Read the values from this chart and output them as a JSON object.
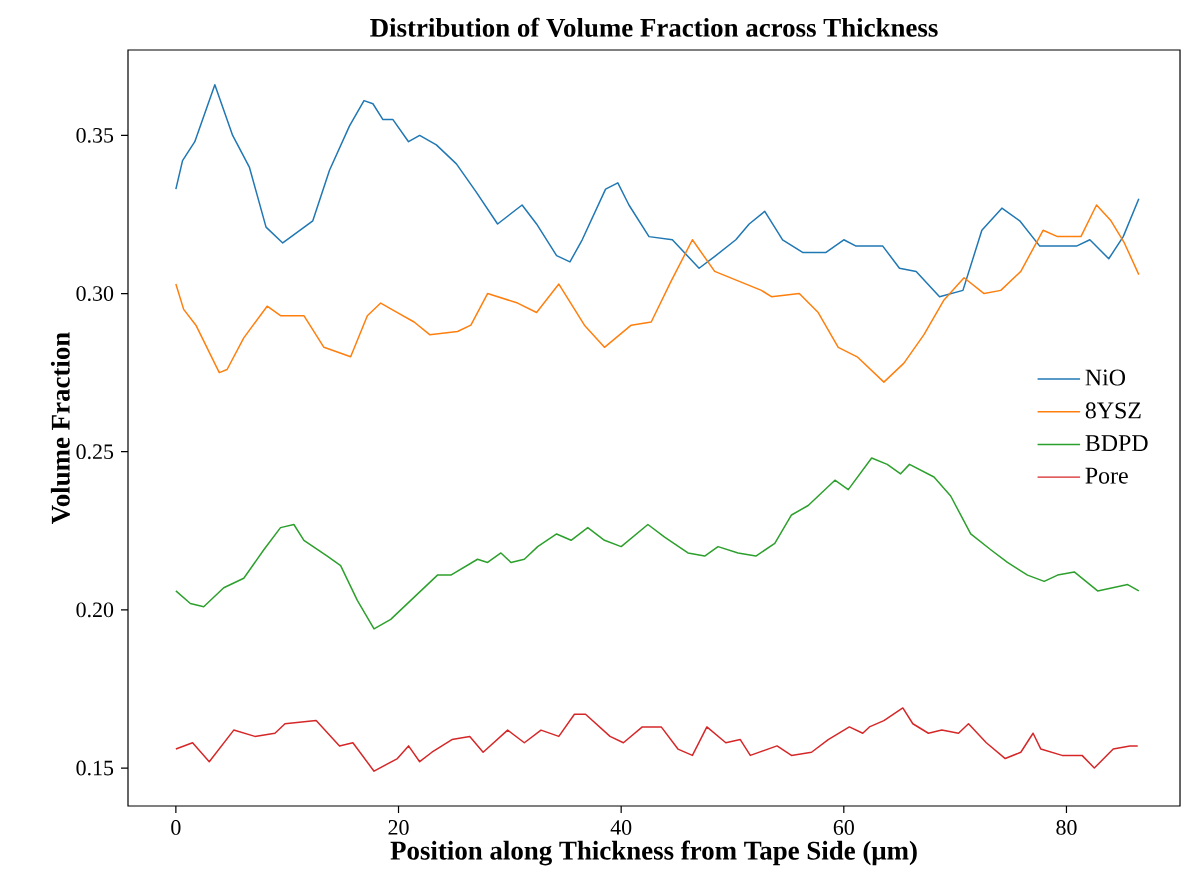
{
  "chart_data": {
    "type": "line",
    "title": "Distribution of Volume Fraction across Thickness",
    "xlabel": "Position along Thickness from Tape Side (μm)",
    "ylabel": "Volume Fraction",
    "xlim": [
      -4.3,
      90.2
    ],
    "ylim": [
      0.138,
      0.377
    ],
    "xticks": [
      0,
      20,
      40,
      60,
      80
    ],
    "yticks": [
      0.15,
      {
        "value": 0.2,
        "label": "0.20"
      },
      0.25,
      {
        "value": 0.3,
        "label": "0.30"
      },
      0.35
    ],
    "grid": false,
    "legend": "right",
    "series": [
      {
        "name": "NiO",
        "color": "#1f77b4",
        "x": [
          0,
          0.6,
          1.7,
          3.5,
          5.1,
          6.6,
          8.1,
          9.6,
          12.3,
          13.8,
          15.6,
          16.9,
          17.7,
          18.6,
          19.5,
          20.9,
          21.9,
          23.4,
          25.2,
          27.0,
          28.9,
          31.1,
          32.4,
          34.2,
          35.4,
          36.5,
          38.6,
          39.7,
          40.7,
          42.5,
          44.6,
          47.0,
          48.5,
          50.3,
          51.5,
          52.9,
          54.5,
          56.3,
          58.4,
          60.0,
          61.1,
          63.5,
          65.0,
          66.5,
          68.6,
          70.7,
          72.4,
          74.2,
          75.8,
          77.6,
          79.0,
          80.9,
          82.1,
          83.8,
          85.1,
          86.5
        ],
        "values": [
          0.333,
          0.342,
          0.348,
          0.366,
          0.35,
          0.34,
          0.321,
          0.316,
          0.323,
          0.339,
          0.353,
          0.361,
          0.36,
          0.355,
          0.355,
          0.348,
          0.35,
          0.347,
          0.341,
          0.332,
          0.322,
          0.328,
          0.322,
          0.312,
          0.31,
          0.317,
          0.333,
          0.335,
          0.328,
          0.318,
          0.317,
          0.308,
          0.312,
          0.317,
          0.322,
          0.326,
          0.317,
          0.313,
          0.313,
          0.317,
          0.315,
          0.315,
          0.308,
          0.307,
          0.299,
          0.301,
          0.32,
          0.327,
          0.323,
          0.315,
          0.315,
          0.315,
          0.317,
          0.311,
          0.318,
          0.33
        ]
      },
      {
        "name": "8YSZ",
        "color": "#ff7f0e",
        "x": [
          0,
          0.7,
          1.8,
          3.9,
          4.6,
          6.1,
          8.2,
          9.4,
          11.5,
          13.3,
          15.7,
          17.2,
          18.4,
          19.9,
          21.4,
          22.8,
          25.3,
          26.5,
          28.0,
          30.7,
          32.4,
          34.4,
          36.7,
          38.5,
          40.9,
          42.7,
          44.5,
          46.4,
          48.4,
          50.5,
          52.6,
          53.5,
          56.0,
          57.7,
          59.5,
          61.2,
          63.6,
          65.4,
          67.2,
          69.0,
          70.8,
          72.6,
          74.1,
          75.9,
          77.9,
          79.2,
          81.3,
          82.7,
          84.0,
          85.2,
          86.5
        ],
        "values": [
          0.303,
          0.295,
          0.29,
          0.275,
          0.276,
          0.286,
          0.296,
          0.293,
          0.293,
          0.283,
          0.28,
          0.293,
          0.297,
          0.294,
          0.291,
          0.287,
          0.288,
          0.29,
          0.3,
          0.297,
          0.294,
          0.303,
          0.29,
          0.283,
          0.29,
          0.291,
          0.304,
          0.317,
          0.307,
          0.304,
          0.301,
          0.299,
          0.3,
          0.294,
          0.283,
          0.28,
          0.272,
          0.278,
          0.287,
          0.298,
          0.305,
          0.3,
          0.301,
          0.307,
          0.32,
          0.318,
          0.318,
          0.328,
          0.323,
          0.316,
          0.306
        ]
      },
      {
        "name": "BDPD",
        "color": "#2ca02c",
        "x": [
          0,
          1.3,
          2.5,
          4.3,
          6.1,
          7.9,
          9.4,
          10.6,
          11.5,
          13.6,
          14.8,
          16.3,
          17.8,
          19.3,
          21.1,
          23.5,
          24.7,
          27.1,
          28.0,
          29.2,
          30.1,
          31.3,
          32.5,
          34.2,
          35.5,
          37.0,
          38.5,
          40.0,
          42.4,
          43.9,
          46.0,
          47.5,
          48.7,
          50.5,
          52.1,
          53.8,
          55.3,
          56.8,
          59.2,
          60.4,
          62.5,
          63.9,
          65.1,
          65.9,
          68.1,
          69.6,
          71.4,
          73.2,
          74.7,
          76.5,
          78.0,
          79.2,
          80.7,
          82.8,
          85.5,
          86.5
        ],
        "values": [
          0.206,
          0.202,
          0.201,
          0.207,
          0.21,
          0.219,
          0.226,
          0.227,
          0.222,
          0.217,
          0.214,
          0.203,
          0.194,
          0.197,
          0.203,
          0.211,
          0.211,
          0.216,
          0.215,
          0.218,
          0.215,
          0.216,
          0.22,
          0.224,
          0.222,
          0.226,
          0.222,
          0.22,
          0.227,
          0.223,
          0.218,
          0.217,
          0.22,
          0.218,
          0.217,
          0.221,
          0.23,
          0.233,
          0.241,
          0.238,
          0.248,
          0.246,
          0.243,
          0.246,
          0.242,
          0.236,
          0.224,
          0.219,
          0.215,
          0.211,
          0.209,
          0.211,
          0.212,
          0.206,
          0.208,
          0.206
        ]
      },
      {
        "name": "Pore",
        "color": "#d62728",
        "x": [
          0,
          1.5,
          3.0,
          5.2,
          7.1,
          8.9,
          9.8,
          12.6,
          14.7,
          15.9,
          17.8,
          19.9,
          20.9,
          21.9,
          23.0,
          24.8,
          26.4,
          27.6,
          29.8,
          31.3,
          32.8,
          34.4,
          35.8,
          36.8,
          39.0,
          40.2,
          41.9,
          43.6,
          45.1,
          46.4,
          47.7,
          49.4,
          50.7,
          51.6,
          54.0,
          55.3,
          57.1,
          58.6,
          60.5,
          61.7,
          62.3,
          63.6,
          65.3,
          66.2,
          67.6,
          68.8,
          70.3,
          71.2,
          72.8,
          74.5,
          75.9,
          77.0,
          77.7,
          79.6,
          81.4,
          82.5,
          84.2,
          85.7,
          86.4
        ],
        "values": [
          0.156,
          0.158,
          0.152,
          0.162,
          0.16,
          0.161,
          0.164,
          0.165,
          0.157,
          0.158,
          0.149,
          0.153,
          0.157,
          0.152,
          0.155,
          0.159,
          0.16,
          0.155,
          0.162,
          0.158,
          0.162,
          0.16,
          0.167,
          0.167,
          0.16,
          0.158,
          0.163,
          0.163,
          0.156,
          0.154,
          0.163,
          0.158,
          0.159,
          0.154,
          0.157,
          0.154,
          0.155,
          0.159,
          0.163,
          0.161,
          0.163,
          0.165,
          0.169,
          0.164,
          0.161,
          0.162,
          0.161,
          0.164,
          0.158,
          0.153,
          0.155,
          0.161,
          0.156,
          0.154,
          0.154,
          0.15,
          0.156,
          0.157,
          0.157
        ]
      }
    ]
  }
}
